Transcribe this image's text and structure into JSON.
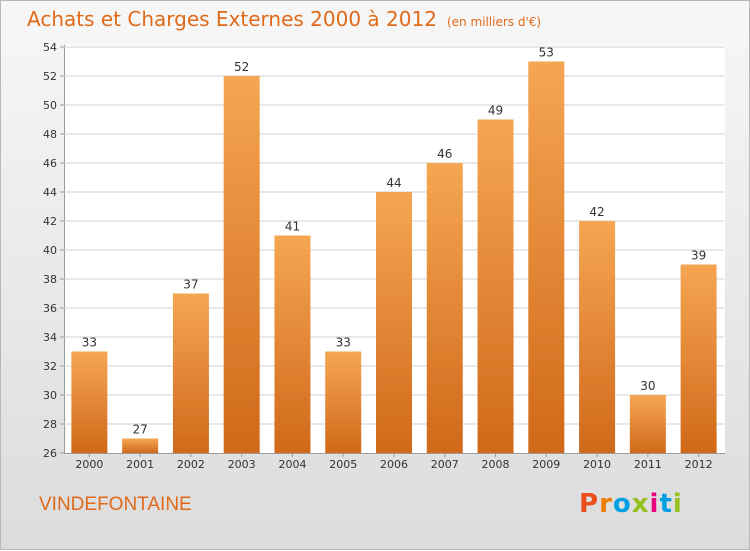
{
  "header": {
    "title": "Achats et Charges Externes 2000 à 2012",
    "unit": "(en milliers d'€)"
  },
  "footer": {
    "commune": "VINDEFONTAINE",
    "logo_text": "Proxiti",
    "logo_colors": [
      "#e94e1b",
      "#ef7d00",
      "#009fe3",
      "#95c11f",
      "#e6007e",
      "#009fe3",
      "#95c11f"
    ]
  },
  "colors": {
    "title": "#e06a1a",
    "bar_top": "#f5a652",
    "bar_bottom": "#d0691a",
    "grid": "#d0d0d0",
    "axis_text": "#333333"
  },
  "chart_data": {
    "type": "bar",
    "title": "Achats et Charges Externes 2000 à 2012",
    "subtitle": "(en milliers d'€)",
    "categories": [
      "2000",
      "2001",
      "2002",
      "2003",
      "2004",
      "2005",
      "2006",
      "2007",
      "2008",
      "2009",
      "2010",
      "2011",
      "2012"
    ],
    "values": [
      33,
      27,
      37,
      52,
      41,
      33,
      44,
      46,
      49,
      53,
      42,
      30,
      39
    ],
    "ylim": [
      26,
      54
    ],
    "yticks": [
      26,
      28,
      30,
      32,
      34,
      36,
      38,
      40,
      42,
      44,
      46,
      48,
      50,
      52,
      54
    ],
    "grid": true,
    "data_labels": true
  }
}
